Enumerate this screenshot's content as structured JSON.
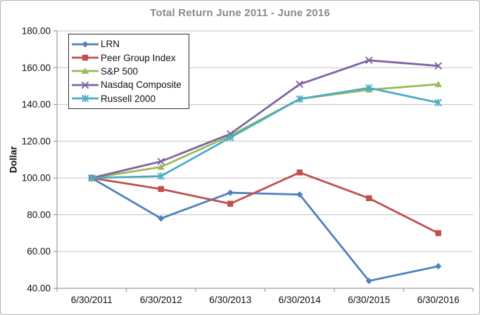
{
  "chart_data": {
    "type": "line",
    "title": "Total Return June 2011 - June 2016",
    "xlabel": "",
    "ylabel": "Dollar",
    "categories": [
      "6/30/2011",
      "6/30/2012",
      "6/30/2013",
      "6/30/2014",
      "6/30/2015",
      "6/30/2016"
    ],
    "series": [
      {
        "name": "LRN",
        "color": "#4f81bd",
        "marker": "diamond",
        "values": [
          100,
          78,
          92,
          91,
          44,
          52
        ]
      },
      {
        "name": "Peer Group Index",
        "color": "#c0504d",
        "marker": "square",
        "values": [
          100,
          94,
          86,
          103,
          89,
          70
        ]
      },
      {
        "name": "S&P 500",
        "color": "#9bbb59",
        "marker": "triangle",
        "values": [
          100,
          106,
          123,
          143,
          148,
          151
        ]
      },
      {
        "name": "Nasdaq Composite",
        "color": "#8064a2",
        "marker": "x",
        "values": [
          100,
          109,
          124,
          151,
          164,
          161
        ]
      },
      {
        "name": "Russell 2000",
        "color": "#4bacc6",
        "marker": "asterisk",
        "values": [
          100,
          101,
          122,
          143,
          149,
          141
        ]
      }
    ],
    "ylim": [
      40,
      180
    ],
    "ytick_step": 20,
    "ytick_labels": [
      "40.00",
      "60.00",
      "80.00",
      "100.00",
      "120.00",
      "140.00",
      "160.00",
      "180.00"
    ],
    "grid": "horizontal",
    "legend_position": "top-left",
    "colors": {
      "gridline": "#c3c3c3",
      "axis": "#9b9b9b",
      "tick_label": "#111111",
      "title": "#8a8a8a"
    }
  }
}
